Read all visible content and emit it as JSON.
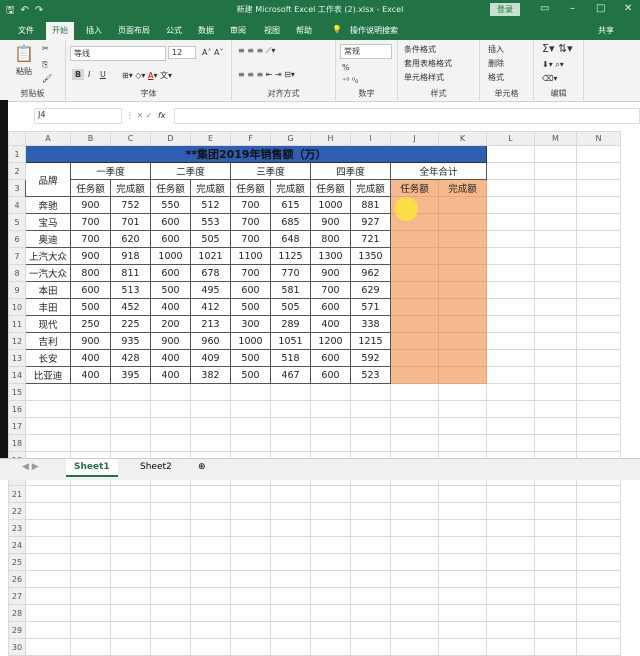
{
  "title": "新建 Microsoft Excel 工作表 (2).xlsx - Excel",
  "login": "登录",
  "ribbon_tabs": [
    "文件",
    "开始",
    "插入",
    "页面布局",
    "公式",
    "数据",
    "审阅",
    "视图",
    "帮助",
    "操作说明搜索"
  ],
  "share": "共享",
  "clipboard": {
    "paste": "粘贴",
    "label": "剪贴板"
  },
  "font": {
    "name": "等线",
    "size": "12",
    "label": "字体",
    "bold": "B",
    "italic": "I",
    "underline": "U"
  },
  "alignment": {
    "label": "对齐方式"
  },
  "number": {
    "format": "常规",
    "label": "数字",
    "percent": "%"
  },
  "styles": {
    "items": [
      "条件格式",
      "套用表格格式",
      "单元格样式"
    ],
    "label": "样式"
  },
  "cells": {
    "items": [
      "插入",
      "删除",
      "格式"
    ],
    "label": "单元格"
  },
  "editing": {
    "label": "编辑"
  },
  "name_box": "J4",
  "fx": "fx",
  "columns": [
    "A",
    "B",
    "C",
    "D",
    "E",
    "F",
    "G",
    "H",
    "I",
    "J",
    "K",
    "L",
    "M",
    "N"
  ],
  "sheet": {
    "title": "**集团2019年销售额（万）",
    "brand_header": "品牌",
    "quarters": [
      "一季度",
      "二季度",
      "三季度",
      "四季度",
      "全年合计"
    ],
    "sub": [
      "任务额",
      "完成额"
    ],
    "rows": [
      [
        "奔驰",
        900,
        752,
        550,
        512,
        700,
        615,
        1000,
        881
      ],
      [
        "宝马",
        700,
        701,
        600,
        553,
        700,
        685,
        900,
        927
      ],
      [
        "奥迪",
        700,
        620,
        600,
        505,
        700,
        648,
        800,
        721
      ],
      [
        "上汽大众",
        900,
        918,
        1000,
        1021,
        1100,
        1125,
        1300,
        1350
      ],
      [
        "一汽大众",
        800,
        811,
        600,
        678,
        700,
        770,
        900,
        962
      ],
      [
        "本田",
        600,
        513,
        500,
        495,
        600,
        581,
        700,
        629
      ],
      [
        "丰田",
        500,
        452,
        400,
        412,
        500,
        505,
        600,
        571
      ],
      [
        "现代",
        250,
        225,
        200,
        213,
        300,
        289,
        400,
        338
      ],
      [
        "吉利",
        900,
        935,
        900,
        960,
        1000,
        1051,
        1200,
        1215
      ],
      [
        "长安",
        400,
        428,
        400,
        409,
        500,
        518,
        600,
        592
      ],
      [
        "比亚迪",
        400,
        395,
        400,
        382,
        500,
        467,
        600,
        523
      ]
    ]
  },
  "sheet_tabs": [
    "Sheet1",
    "Sheet2"
  ],
  "colors": {
    "excel_green": "#217346",
    "title_fill": "#2f5fb3",
    "total_fill": "#f4b98c"
  }
}
